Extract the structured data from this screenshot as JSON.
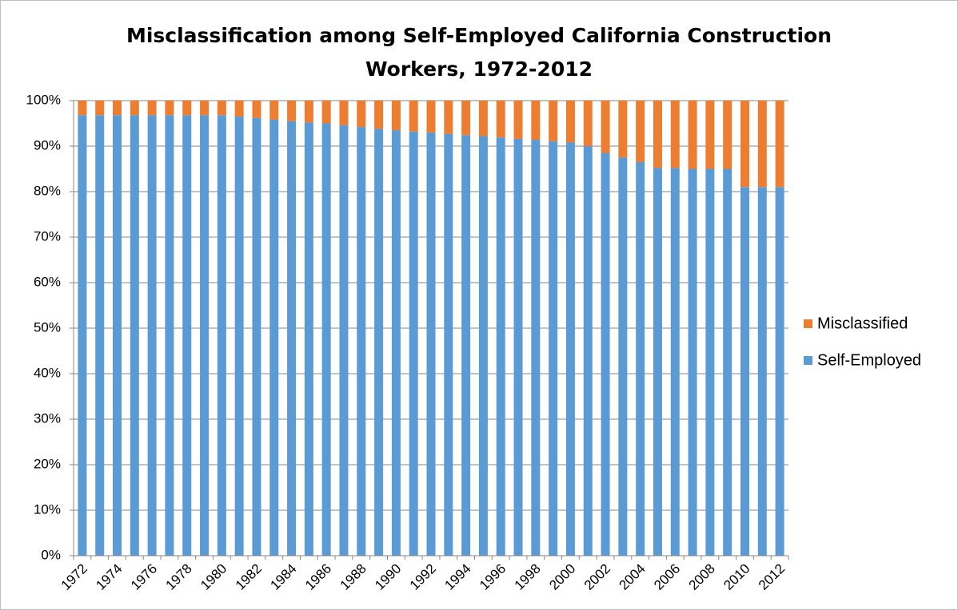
{
  "chart_data": {
    "type": "stacked_bar",
    "title": [
      "Misclassification among Self-Employed California Construction",
      "Workers, 1972-2012"
    ],
    "categories": [
      "1972",
      null,
      "1974",
      null,
      "1976",
      null,
      "1978",
      null,
      "1980",
      null,
      "1982",
      null,
      "1984",
      null,
      "1986",
      null,
      "1988",
      null,
      "1990",
      null,
      "1992",
      null,
      "1994",
      null,
      "1996",
      null,
      "1998",
      null,
      "2000",
      null,
      "2002",
      null,
      "2004",
      null,
      "2006",
      null,
      "2008",
      null,
      "2010",
      null,
      "2012"
    ],
    "series": [
      {
        "name": "Self-Employed",
        "color": "#5b9bd5",
        "values": [
          96.8,
          96.8,
          96.8,
          96.8,
          96.8,
          96.8,
          96.8,
          96.8,
          96.8,
          96.5,
          96.2,
          95.8,
          95.5,
          95.2,
          95.0,
          94.6,
          94.2,
          93.8,
          93.5,
          93.2,
          93.0,
          92.7,
          92.4,
          92.2,
          91.9,
          91.6,
          91.4,
          91.1,
          90.8,
          90.0,
          88.5,
          87.5,
          86.5,
          85.2,
          85.2,
          85.0,
          85.0,
          85.0,
          81.0,
          81.0,
          81.0
        ]
      },
      {
        "name": "Misclassified",
        "color": "#ed7d31",
        "values": [
          3.2,
          3.2,
          3.2,
          3.2,
          3.2,
          3.2,
          3.2,
          3.2,
          3.2,
          3.5,
          3.8,
          4.2,
          4.5,
          4.8,
          5.0,
          5.4,
          5.8,
          6.2,
          6.5,
          6.8,
          7.0,
          7.3,
          7.6,
          7.8,
          8.1,
          8.4,
          8.6,
          8.9,
          9.2,
          10.0,
          11.5,
          12.5,
          13.5,
          14.8,
          14.8,
          15.0,
          15.0,
          15.0,
          19.0,
          19.0,
          19.0
        ]
      }
    ],
    "ylim": [
      0,
      100
    ],
    "yticks": [
      {
        "value": 0,
        "label": "0%"
      },
      {
        "value": 10,
        "label": "10%"
      },
      {
        "value": 20,
        "label": "20%"
      },
      {
        "value": 30,
        "label": "30%"
      },
      {
        "value": 40,
        "label": "40%"
      },
      {
        "value": 50,
        "label": "50%"
      },
      {
        "value": 60,
        "label": "60%"
      },
      {
        "value": 70,
        "label": "70%"
      },
      {
        "value": 80,
        "label": "80%"
      },
      {
        "value": 90,
        "label": "90%"
      },
      {
        "value": 100,
        "label": "100%"
      }
    ],
    "grid": true,
    "legend": "right"
  }
}
